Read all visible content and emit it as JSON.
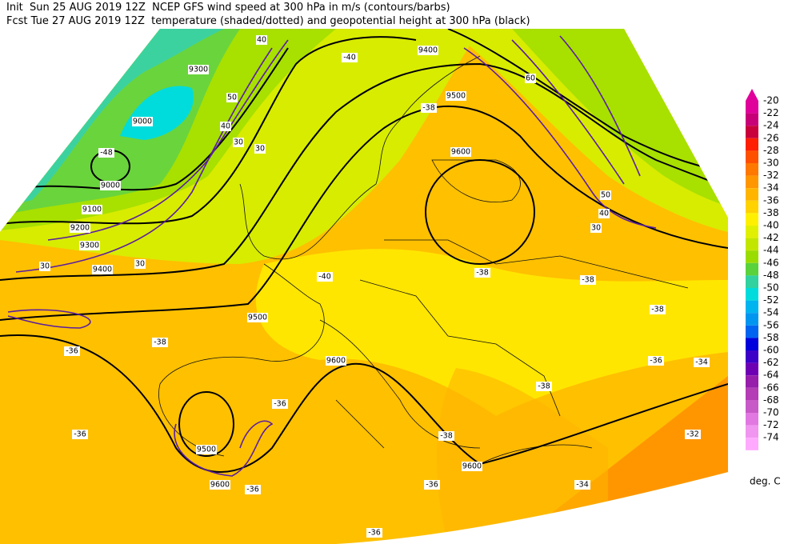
{
  "header": {
    "line1": "Init  Sun 25 AUG 2019 12Z  NCEP GFS wind speed at 300 hPa in m/s (contours/barbs)",
    "line2": "Fcst Tue 27 AUG 2019 12Z  temperature (shaded/dotted) and geopotential height at 300 hPa (black)"
  },
  "colorbar": {
    "labels": [
      "-20",
      "-22",
      "-24",
      "-26",
      "-28",
      "-30",
      "-32",
      "-34",
      "-36",
      "-38",
      "-40",
      "-42",
      "-44",
      "-46",
      "-48",
      "-50",
      "-52",
      "-54",
      "-56",
      "-58",
      "-60",
      "-62",
      "-64",
      "-66",
      "-68",
      "-70",
      "-72",
      "-74"
    ],
    "colors": [
      "#e0009a",
      "#c80078",
      "#c8003c",
      "#ff1e00",
      "#ff5000",
      "#ff7800",
      "#ff9600",
      "#ffb400",
      "#ffd200",
      "#fff000",
      "#e1f000",
      "#c3e600",
      "#9bdc00",
      "#5ad23c",
      "#32d2a0",
      "#00dcdc",
      "#00b4f0",
      "#0096f0",
      "#0064f0",
      "#0000dc",
      "#3c00c8",
      "#6e00b4",
      "#961eaa",
      "#b43cb4",
      "#c85ac8",
      "#e178e1",
      "#f096f0",
      "#ffaaff"
    ],
    "unit": "deg. C"
  },
  "map_labels": [
    "9400",
    "9500",
    "9300",
    "9000",
    "9000",
    "9100",
    "9200",
    "9300",
    "9400",
    "9500",
    "9600",
    "9600",
    "9500",
    "9600",
    "9600",
    "-48",
    "-40",
    "-38",
    "-38",
    "-38",
    "-38",
    "-36",
    "-34",
    "-32",
    "-34",
    "-36",
    "-36",
    "-36",
    "-36",
    "-38",
    "-36",
    "-38",
    "-38",
    "-36",
    "-40",
    "40",
    "50",
    "60",
    "30",
    "40",
    "30",
    "50",
    "40",
    "30",
    "30",
    "30"
  ]
}
